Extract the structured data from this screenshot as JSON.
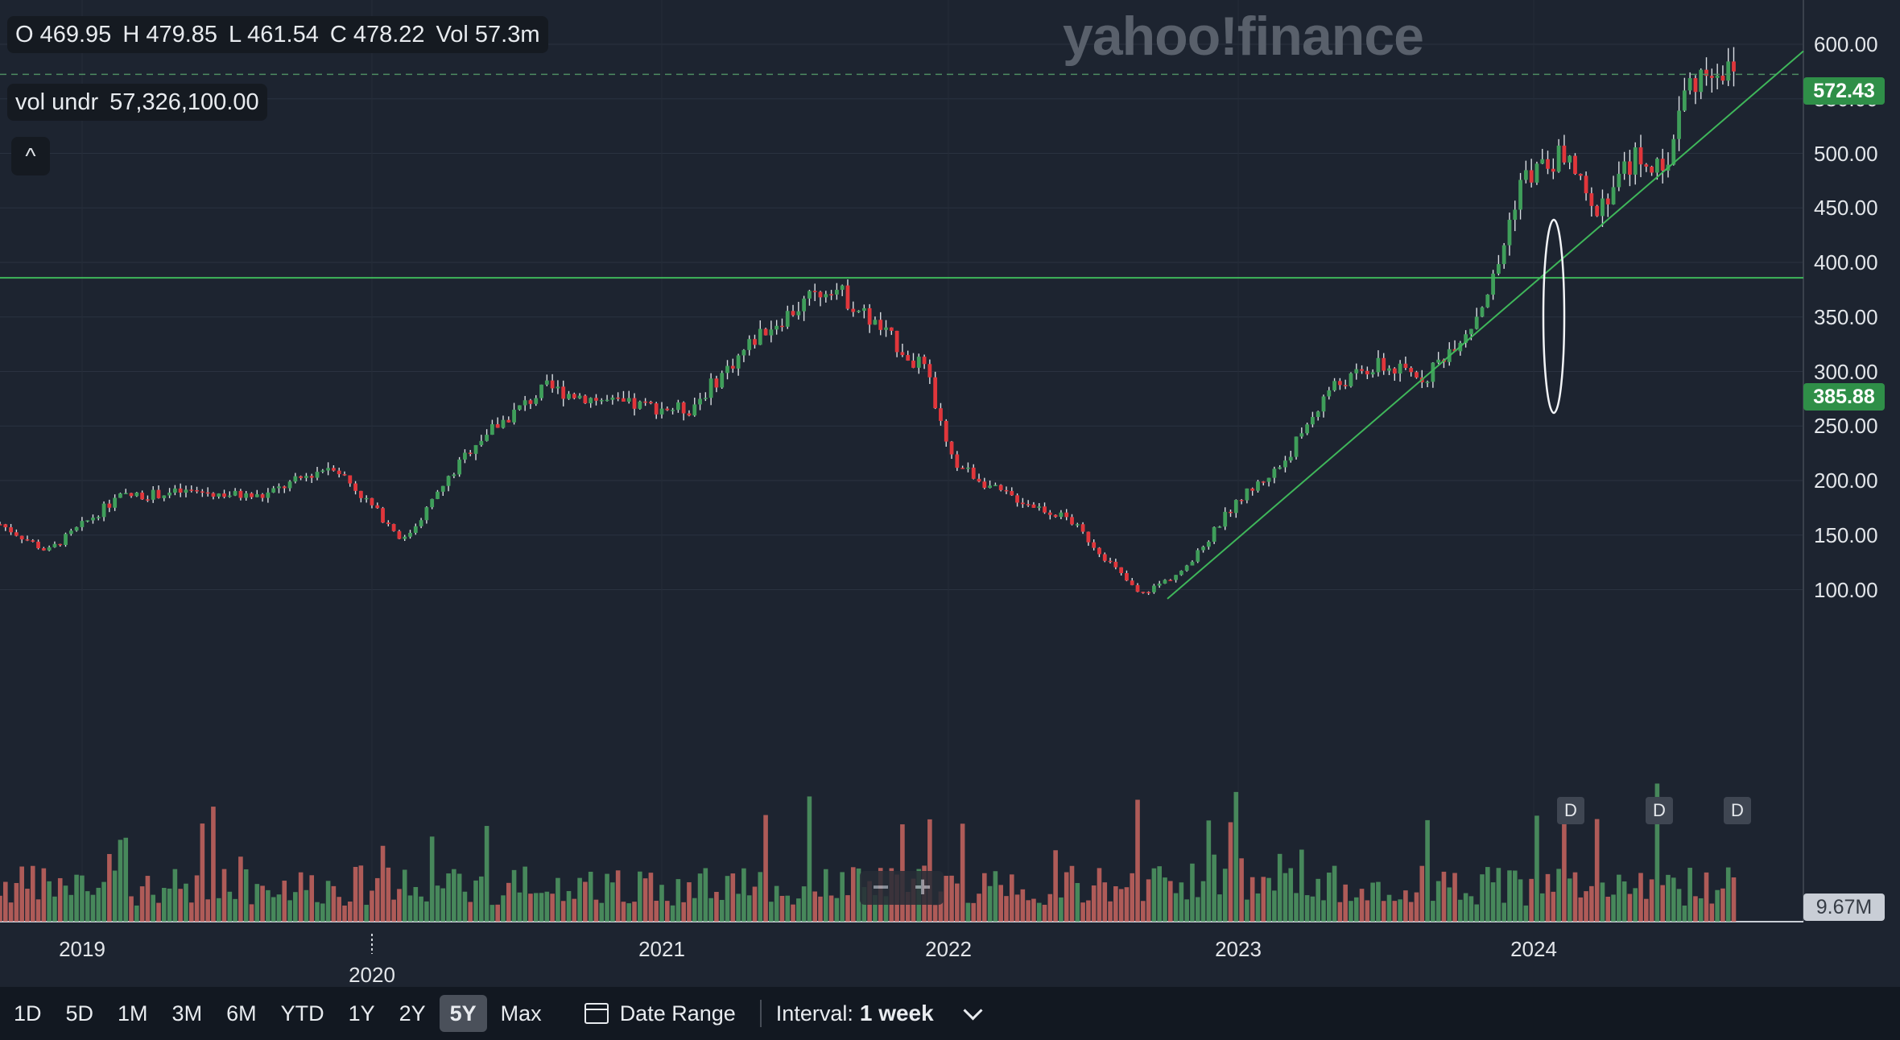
{
  "ohlc": {
    "open": "O 469.95",
    "high": "H 479.85",
    "low": "L 461.54",
    "close": "C 478.22",
    "volume": "Vol 57.3m"
  },
  "indicator": {
    "label": "vol undr",
    "value": "57,326,100.00"
  },
  "collapse_symbol": "^",
  "logo": "yahoo!finance",
  "price_axis": [
    "600.00",
    "550.00",
    "500.00",
    "450.00",
    "400.00",
    "350.00",
    "300.00",
    "250.00",
    "200.00",
    "150.00",
    "100.00"
  ],
  "time_axis": [
    "2019",
    "2020",
    "2021",
    "2022",
    "2023",
    "2024"
  ],
  "last_price_tag": "572.43",
  "horizontal_line_tag": "385.88",
  "volume_max_tag": "9.67M",
  "dividend_badge": "D",
  "zoom": {
    "minus": "−",
    "plus": "+"
  },
  "toolbar": {
    "ranges": [
      "1D",
      "5D",
      "1M",
      "3M",
      "6M",
      "YTD",
      "1Y",
      "2Y",
      "5Y",
      "Max"
    ],
    "active_range": "5Y",
    "date_range_label": "Date Range",
    "interval_label": "Interval:",
    "interval_value": "1 week"
  },
  "colors": {
    "up": "#3f9e5a",
    "down": "#e0363b",
    "trendline": "#3fb75a",
    "background": "#1d2430"
  },
  "chart_data": {
    "type": "candlestick",
    "interval": "1 week",
    "range": "5Y",
    "y_range": [
      50,
      620
    ],
    "annotations": {
      "horizontal_line": 385.88,
      "last_price": 572.43,
      "trendline_from": [
        "2022-10",
        70
      ],
      "trendline_to": [
        "2024-10",
        520
      ]
    },
    "approx_weekly_close_anchors": [
      [
        "2018-10",
        160
      ],
      [
        "2018-12",
        135
      ],
      [
        "2019-03",
        185
      ],
      [
        "2019-06",
        190
      ],
      [
        "2019-09",
        185
      ],
      [
        "2019-12",
        215
      ],
      [
        "2020-03",
        145
      ],
      [
        "2020-06",
        235
      ],
      [
        "2020-09",
        285
      ],
      [
        "2020-12",
        270
      ],
      [
        "2021-03",
        265
      ],
      [
        "2021-06",
        335
      ],
      [
        "2021-09",
        380
      ],
      [
        "2021-11",
        340
      ],
      [
        "2022-01",
        300
      ],
      [
        "2022-02",
        220
      ],
      [
        "2022-04",
        190
      ],
      [
        "2022-07",
        165
      ],
      [
        "2022-10",
        95
      ],
      [
        "2022-12",
        120
      ],
      [
        "2023-02",
        180
      ],
      [
        "2023-04",
        215
      ],
      [
        "2023-06",
        285
      ],
      [
        "2023-08",
        305
      ],
      [
        "2023-10",
        295
      ],
      [
        "2023-12",
        345
      ],
      [
        "2024-01",
        390
      ],
      [
        "2024-02",
        475
      ],
      [
        "2024-04",
        500
      ],
      [
        "2024-05",
        445
      ],
      [
        "2024-07",
        500
      ],
      [
        "2024-08",
        480
      ],
      [
        "2024-09",
        560
      ],
      [
        "2024-10",
        580
      ],
      [
        "2024-11",
        572
      ]
    ]
  }
}
